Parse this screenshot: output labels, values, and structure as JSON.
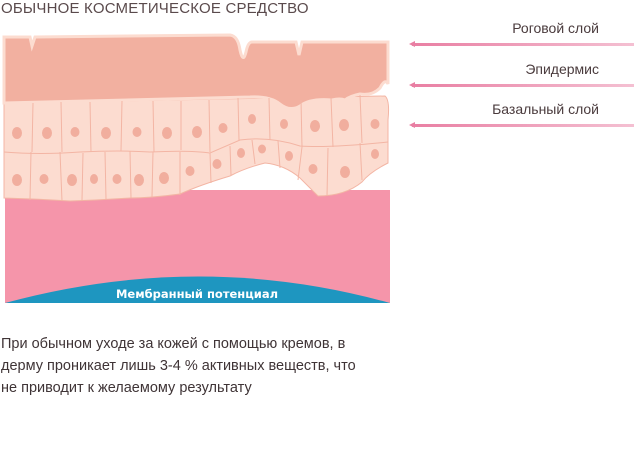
{
  "title": "ОБЫЧНОЕ КОСМЕТИЧЕСКОЕ СРЕДСТВО",
  "layers": [
    {
      "label": "Роговой слой"
    },
    {
      "label": "Эпидермис"
    },
    {
      "label": "Базальный слой"
    }
  ],
  "membrane_label": "Мембранный потенциал",
  "description": "При обычном уходе за кожей с помощью кремов, в дерму проникает лишь 3-4 % активных веществ, что не приводит к желаемому результату",
  "colors": {
    "stratum_corneum": "#f2b0a0",
    "epidermis_cells": "#fcdcd0",
    "nucleus": "#f1ae9e",
    "dermis": "#f595aa",
    "membrane": "#1e96c0",
    "arrow": "#e97fa3"
  }
}
